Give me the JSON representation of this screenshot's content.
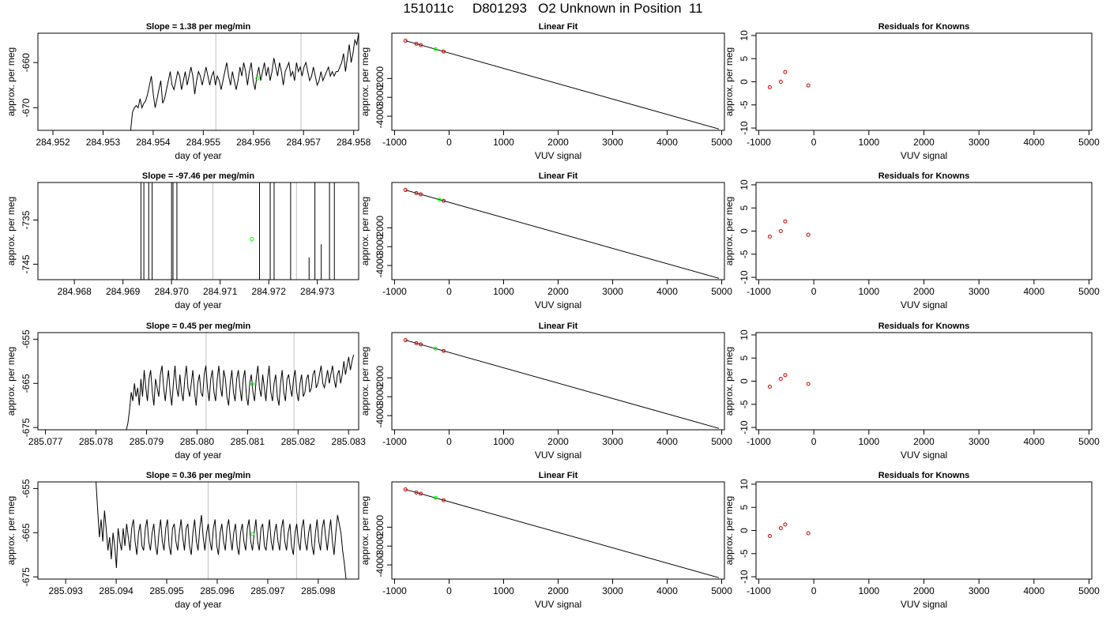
{
  "page_title": "151011c     D801293   O2 Unknown in Position  11",
  "colors": {
    "line": "#000000",
    "guide": "#c0c0c0",
    "unknown": "#00ff00",
    "known": "#cc0000"
  },
  "chart_data": [
    {
      "type": "line",
      "row": 1,
      "panel": "timeseries",
      "title": "Slope =  1.38  per meg/min",
      "xlabel": "day of year",
      "ylabel": "approx. per meg",
      "xlim": [
        284.9517,
        284.9581
      ],
      "ylim": [
        -675,
        -653.5
      ],
      "xticks": [
        "284.952",
        "284.953",
        "284.954",
        "284.955",
        "284.956",
        "284.957",
        "284.958"
      ],
      "yticks": [
        "-660",
        "-670"
      ],
      "guides": [
        284.95525,
        284.95695
      ],
      "unknown_point": [
        284.95608,
        -663.5
      ],
      "series": [
        {
          "x_start": 284.95355,
          "x_end": 284.9581,
          "values": [
            -675,
            -671,
            -670,
            -669.5,
            -670,
            -668,
            -670,
            -669,
            -668.5,
            -667,
            -665,
            -663,
            -667,
            -670,
            -668,
            -666,
            -664,
            -669,
            -668,
            -666,
            -664,
            -662,
            -665,
            -666,
            -664,
            -662,
            -663,
            -666,
            -664,
            -662,
            -665,
            -663,
            -661,
            -663,
            -667,
            -664,
            -662,
            -663,
            -665,
            -663,
            -661,
            -663,
            -665,
            -663,
            -662,
            -665,
            -663,
            -664,
            -666,
            -664,
            -662,
            -660,
            -663,
            -665,
            -662,
            -664,
            -666,
            -664,
            -661,
            -663,
            -660,
            -662,
            -665,
            -662,
            -660,
            -664,
            -666,
            -663,
            -661,
            -664,
            -662,
            -660,
            -663,
            -661,
            -664,
            -662,
            -659,
            -661,
            -663,
            -660,
            -662,
            -665,
            -662,
            -661,
            -660,
            -663,
            -662,
            -664,
            -660,
            -662,
            -661,
            -663,
            -661,
            -660,
            -662,
            -664,
            -663,
            -661,
            -663,
            -665,
            -664,
            -662,
            -664,
            -663,
            -662,
            -661,
            -663,
            -662,
            -663,
            -662,
            -662,
            -661,
            -660,
            -658,
            -662,
            -659,
            -656,
            -660,
            -658,
            -655,
            -656,
            -653.5
          ]
        }
      ]
    },
    {
      "type": "scatter",
      "row": 1,
      "panel": "linear_fit",
      "title": "Linear Fit",
      "xlabel": "VUV signal",
      "ylabel": "approx. per meg",
      "xlim": [
        -1050,
        5050
      ],
      "ylim": [
        -4750,
        400
      ],
      "xticks": [
        -1000,
        0,
        1000,
        2000,
        3000,
        4000,
        5000
      ],
      "yticks": [
        -2000,
        -3000,
        -4000
      ],
      "fit_line": [
        [
          -800,
          0
        ],
        [
          4950,
          -4680
        ]
      ],
      "known_points": [
        [
          -800,
          0
        ],
        [
          -600,
          -163
        ],
        [
          -520,
          -229
        ],
        [
          -100,
          -571
        ]
      ],
      "unknown_point": [
        -250,
        -449
      ]
    },
    {
      "type": "scatter",
      "row": 1,
      "panel": "residuals",
      "title": "Residuals for Knowns",
      "xlabel": "VUV signal",
      "ylabel": "approx. per meg",
      "xlim": [
        -1050,
        5050
      ],
      "ylim": [
        -10.5,
        10.5
      ],
      "xticks": [
        -1000,
        0,
        1000,
        2000,
        3000,
        4000,
        5000
      ],
      "yticks": [
        10,
        5,
        0,
        -5,
        -10
      ],
      "known_points": [
        [
          -800,
          -1.2
        ],
        [
          -600,
          0
        ],
        [
          -520,
          2.1
        ],
        [
          -100,
          -0.8
        ]
      ]
    },
    {
      "type": "line",
      "row": 2,
      "panel": "timeseries",
      "title": "Slope =  -97.46  per meg/min",
      "xlabel": "day of year",
      "ylabel": "approx. per meg",
      "xlim": [
        284.96725,
        284.97385
      ],
      "ylim": [
        -748.5,
        -726.5
      ],
      "xticks": [
        "284.968",
        "284.969",
        "284.970",
        "284.971",
        "284.972",
        "284.973"
      ],
      "yticks": [
        "-735",
        "-745"
      ],
      "guides": [
        284.97085,
        284.97257
      ],
      "unknown_point": [
        284.97165,
        -739.3
      ],
      "vertical_marks": [
        [
          284.96937,
          -748.5,
          -726.5
        ],
        [
          284.96943,
          -748.5,
          -726.5
        ],
        [
          284.96953,
          -748.5,
          -726.5
        ],
        [
          284.9696,
          -748.5,
          -726.5
        ],
        [
          284.97,
          -748.5,
          -726.5
        ],
        [
          284.97003,
          -748.5,
          -726.5
        ],
        [
          284.97011,
          -748.5,
          -726.5
        ],
        [
          284.97181,
          -748.5,
          -726.5
        ],
        [
          284.97203,
          -748.5,
          -726.5
        ],
        [
          284.97211,
          -748.5,
          -726.5
        ],
        [
          284.97245,
          -748.5,
          -726.5
        ],
        [
          284.97283,
          -748.5,
          -743.5
        ],
        [
          284.97295,
          -748.5,
          -726.5
        ],
        [
          284.97308,
          -748.5,
          -740.5
        ],
        [
          284.97325,
          -748.5,
          -726.5
        ],
        [
          284.97335,
          -748.5,
          -726.5
        ]
      ]
    },
    {
      "type": "scatter",
      "row": 2,
      "panel": "linear_fit",
      "title": "Linear Fit",
      "xlabel": "VUV signal",
      "ylabel": "approx. per meg",
      "xlim": [
        -1050,
        5050
      ],
      "ylim": [
        -4750,
        400
      ],
      "xticks": [
        -1000,
        0,
        1000,
        2000,
        3000,
        4000,
        5000
      ],
      "yticks": [
        -2000,
        -3000,
        -4000
      ],
      "fit_line": [
        [
          -800,
          0
        ],
        [
          4950,
          -4680
        ]
      ],
      "known_points": [
        [
          -800,
          0
        ],
        [
          -600,
          -163
        ],
        [
          -520,
          -229
        ],
        [
          -100,
          -571
        ]
      ],
      "unknown_point": [
        -180,
        -506
      ]
    },
    {
      "type": "scatter",
      "row": 2,
      "panel": "residuals",
      "title": "Residuals for Knowns",
      "xlabel": "VUV signal",
      "ylabel": "approx. per meg",
      "xlim": [
        -1050,
        5050
      ],
      "ylim": [
        -10.5,
        10.5
      ],
      "xticks": [
        -1000,
        0,
        1000,
        2000,
        3000,
        4000,
        5000
      ],
      "yticks": [
        10,
        5,
        0,
        -5,
        -10
      ],
      "known_points": [
        [
          -800,
          -1.2
        ],
        [
          -600,
          0
        ],
        [
          -520,
          2.1
        ],
        [
          -100,
          -0.8
        ]
      ]
    },
    {
      "type": "line",
      "row": 3,
      "panel": "timeseries",
      "title": "Slope =  0.45  per meg/min",
      "xlabel": "day of year",
      "ylabel": "approx. per meg",
      "xlim": [
        285.07685,
        285.0832
      ],
      "ylim": [
        -675.5,
        -653.5
      ],
      "xticks": [
        "285.077",
        "285.078",
        "285.079",
        "285.080",
        "285.081",
        "285.082",
        "285.083"
      ],
      "yticks": [
        "-655",
        "-665",
        "-675"
      ],
      "guides": [
        285.08018,
        285.08192
      ],
      "unknown_point": [
        285.0811,
        -665.2
      ],
      "series": [
        {
          "x_start": 285.0786,
          "x_end": 285.0831,
          "values": [
            -675.5,
            -674,
            -671,
            -667,
            -669,
            -665,
            -668,
            -666,
            -670,
            -664,
            -668,
            -662,
            -666,
            -669,
            -664,
            -662,
            -667,
            -670,
            -664,
            -666,
            -668,
            -663,
            -661,
            -666,
            -669,
            -665,
            -662,
            -667,
            -670,
            -665,
            -661,
            -666,
            -668,
            -663,
            -667,
            -669,
            -664,
            -661,
            -666,
            -668,
            -665,
            -662,
            -667,
            -670,
            -665,
            -663,
            -667,
            -668,
            -663,
            -661,
            -666,
            -669,
            -664,
            -662,
            -667,
            -669,
            -664,
            -661,
            -666,
            -668,
            -662,
            -664,
            -668,
            -670,
            -665,
            -662,
            -667,
            -669,
            -664,
            -662,
            -666,
            -669,
            -664,
            -662,
            -668,
            -670,
            -665,
            -663,
            -667,
            -669,
            -664,
            -661,
            -666,
            -668,
            -663,
            -666,
            -669,
            -664,
            -661,
            -667,
            -669,
            -665,
            -663,
            -668,
            -670,
            -665,
            -662,
            -667,
            -669,
            -664,
            -663,
            -666,
            -668,
            -664,
            -662,
            -667,
            -669,
            -665,
            -663,
            -668,
            -667,
            -664,
            -663,
            -667,
            -666,
            -663,
            -662,
            -666,
            -665,
            -663,
            -661,
            -665,
            -666,
            -664,
            -662,
            -665,
            -663,
            -661,
            -664,
            -666,
            -663,
            -662,
            -665,
            -663,
            -660,
            -663,
            -661,
            -659,
            -662,
            -660,
            -658.5
          ]
        }
      ]
    },
    {
      "type": "scatter",
      "row": 3,
      "panel": "linear_fit",
      "title": "Linear Fit",
      "xlabel": "VUV signal",
      "ylabel": "approx. per meg",
      "xlim": [
        -1050,
        5050
      ],
      "ylim": [
        -4750,
        400
      ],
      "xticks": [
        -1000,
        0,
        1000,
        2000,
        3000,
        4000,
        5000
      ],
      "yticks": [
        -2000,
        -3000,
        -4000
      ],
      "fit_line": [
        [
          -800,
          0
        ],
        [
          4950,
          -4680
        ]
      ],
      "known_points": [
        [
          -800,
          0
        ],
        [
          -600,
          -163
        ],
        [
          -520,
          -229
        ],
        [
          -100,
          -571
        ]
      ],
      "unknown_point": [
        -250,
        -449
      ]
    },
    {
      "type": "scatter",
      "row": 3,
      "panel": "residuals",
      "title": "Residuals for Knowns",
      "xlabel": "VUV signal",
      "ylabel": "approx. per meg",
      "xlim": [
        -1050,
        5050
      ],
      "ylim": [
        -10.5,
        10.5
      ],
      "xticks": [
        -1000,
        0,
        1000,
        2000,
        3000,
        4000,
        5000
      ],
      "yticks": [
        10,
        5,
        0,
        -5,
        -10
      ],
      "known_points": [
        [
          -800,
          -1.2
        ],
        [
          -600,
          0.5
        ],
        [
          -520,
          1.3
        ],
        [
          -100,
          -0.6
        ]
      ]
    },
    {
      "type": "line",
      "row": 4,
      "panel": "timeseries",
      "title": "Slope =  0.36  per meg/min",
      "xlabel": "day of year",
      "ylabel": "approx. per meg",
      "xlim": [
        285.09245,
        285.0988
      ],
      "ylim": [
        -675.5,
        -653.5
      ],
      "xticks": [
        "285.093",
        "285.094",
        "285.095",
        "285.096",
        "285.097",
        "285.098"
      ],
      "yticks": [
        "-655",
        "-665",
        "-675"
      ],
      "guides": [
        285.09582,
        285.09757
      ],
      "unknown_point": [
        285.0967,
        -665.3
      ],
      "series": [
        {
          "x_start": 285.0936,
          "x_end": 285.09855,
          "values": [
            -653.5,
            -660,
            -666,
            -662,
            -667,
            -660,
            -664,
            -669,
            -666,
            -671,
            -665,
            -668,
            -673,
            -664,
            -667,
            -669,
            -664,
            -668,
            -663,
            -666,
            -669,
            -664,
            -662,
            -667,
            -670,
            -665,
            -663,
            -668,
            -669,
            -664,
            -662,
            -667,
            -669,
            -665,
            -663,
            -668,
            -670,
            -665,
            -662,
            -667,
            -669,
            -664,
            -662,
            -668,
            -670,
            -664,
            -663,
            -667,
            -669,
            -665,
            -662,
            -666,
            -669,
            -664,
            -663,
            -668,
            -670,
            -665,
            -662,
            -667,
            -669,
            -664,
            -661,
            -666,
            -669,
            -665,
            -663,
            -667,
            -669,
            -664,
            -662,
            -668,
            -670,
            -665,
            -663,
            -667,
            -669,
            -664,
            -662,
            -666,
            -669,
            -665,
            -663,
            -668,
            -670,
            -665,
            -663,
            -667,
            -669,
            -664,
            -662,
            -667,
            -669,
            -665,
            -662,
            -667,
            -669,
            -664,
            -663,
            -668,
            -669,
            -665,
            -662,
            -667,
            -669,
            -665,
            -663,
            -667,
            -669,
            -664,
            -662,
            -667,
            -669,
            -665,
            -663,
            -668,
            -670,
            -665,
            -663,
            -667,
            -669,
            -664,
            -662,
            -667,
            -669,
            -665,
            -663,
            -668,
            -670,
            -665,
            -662,
            -667,
            -669,
            -664,
            -662,
            -666,
            -669,
            -665,
            -662,
            -667,
            -670,
            -665,
            -661,
            -663,
            -665,
            -669,
            -672,
            -675.5
          ]
        }
      ]
    },
    {
      "type": "scatter",
      "row": 4,
      "panel": "linear_fit",
      "title": "Linear Fit",
      "xlabel": "VUV signal",
      "ylabel": "approx. per meg",
      "xlim": [
        -1050,
        5050
      ],
      "ylim": [
        -4750,
        400
      ],
      "xticks": [
        -1000,
        0,
        1000,
        2000,
        3000,
        4000,
        5000
      ],
      "yticks": [
        -2000,
        -3000,
        -4000
      ],
      "fit_line": [
        [
          -800,
          0
        ],
        [
          4950,
          -4680
        ]
      ],
      "known_points": [
        [
          -800,
          0
        ],
        [
          -600,
          -163
        ],
        [
          -520,
          -229
        ],
        [
          -100,
          -571
        ]
      ],
      "unknown_point": [
        -250,
        -449
      ]
    },
    {
      "type": "scatter",
      "row": 4,
      "panel": "residuals",
      "title": "Residuals for Knowns",
      "xlabel": "VUV signal",
      "ylabel": "approx. per meg",
      "xlim": [
        -1050,
        5050
      ],
      "ylim": [
        -10.5,
        10.5
      ],
      "xticks": [
        -1000,
        0,
        1000,
        2000,
        3000,
        4000,
        5000
      ],
      "yticks": [
        10,
        5,
        0,
        -5,
        -10
      ],
      "known_points": [
        [
          -800,
          -1.2
        ],
        [
          -600,
          0.5
        ],
        [
          -520,
          1.3
        ],
        [
          -100,
          -0.6
        ]
      ]
    }
  ]
}
